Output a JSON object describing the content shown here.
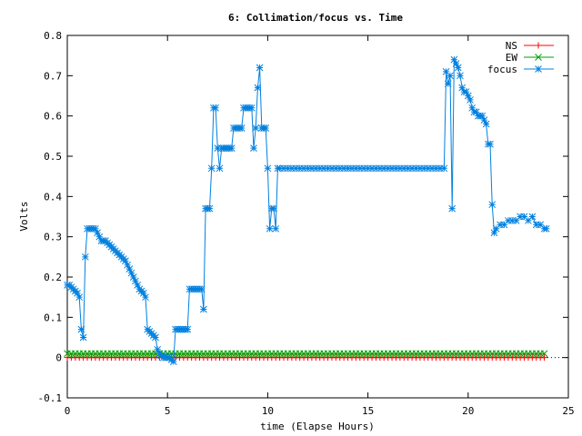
{
  "chart_data": {
    "type": "line",
    "title": "6: Collimation/focus vs. Time",
    "xlabel": "time (Elapse Hours)",
    "ylabel": "Volts",
    "xlim": [
      0,
      25
    ],
    "ylim": [
      -0.1,
      0.8
    ],
    "x_ticks": [
      0,
      5,
      10,
      15,
      20,
      25
    ],
    "y_ticks": [
      -0.1,
      0,
      0.1,
      0.2,
      0.3,
      0.4,
      0.5,
      0.6,
      0.7,
      0.8
    ],
    "x_tick_labels": [
      "0",
      "5",
      "10",
      "15",
      "20",
      "25"
    ],
    "y_tick_labels": [
      "-0.1",
      "0",
      "0.1",
      "0.2",
      "0.3",
      "0.4",
      "0.5",
      "0.6",
      "0.7",
      "0.8"
    ],
    "grid": false,
    "legend_position": "top-right",
    "series": [
      {
        "name": "NS",
        "color": "#ff0000",
        "marker": "plus",
        "x": [
          0,
          0.2,
          0.4,
          0.6,
          0.8,
          1,
          1.2,
          1.4,
          1.6,
          1.8,
          2,
          2.2,
          2.4,
          2.6,
          2.8,
          3,
          3.2,
          3.4,
          3.6,
          3.8,
          4,
          4.2,
          4.4,
          4.6,
          4.8,
          5,
          5.2,
          5.4,
          5.6,
          5.8,
          6,
          6.2,
          6.4,
          6.6,
          6.8,
          7,
          7.2,
          7.4,
          7.6,
          7.8,
          8,
          8.2,
          8.4,
          8.6,
          8.8,
          9,
          9.2,
          9.4,
          9.6,
          9.8,
          10,
          10.2,
          10.4,
          10.6,
          10.8,
          11,
          11.2,
          11.4,
          11.6,
          11.8,
          12,
          12.2,
          12.4,
          12.6,
          12.8,
          13,
          13.2,
          13.4,
          13.6,
          13.8,
          14,
          14.2,
          14.4,
          14.6,
          14.8,
          15,
          15.2,
          15.4,
          15.6,
          15.8,
          16,
          16.2,
          16.4,
          16.6,
          16.8,
          17,
          17.2,
          17.4,
          17.6,
          17.8,
          18,
          18.2,
          18.4,
          18.6,
          18.8,
          19,
          19.2,
          19.4,
          19.6,
          19.8,
          20,
          20.2,
          20.4,
          20.6,
          20.8,
          21,
          21.2,
          21.4,
          21.6,
          21.8,
          22,
          22.2,
          22.4,
          22.6,
          22.8,
          23,
          23.2,
          23.4,
          23.6,
          23.8
        ],
        "y": [
          0,
          0,
          0,
          0,
          0,
          0,
          0,
          0,
          0,
          0,
          0,
          0,
          0,
          0,
          0,
          0,
          0,
          0,
          0,
          0,
          0,
          0,
          0,
          0,
          0,
          0,
          0,
          0,
          0,
          0,
          0,
          0,
          0,
          0,
          0,
          0,
          0,
          0,
          0,
          0,
          0,
          0,
          0,
          0,
          0,
          0,
          0,
          0,
          0,
          0,
          0,
          0,
          0,
          0,
          0,
          0,
          0,
          0,
          0,
          0,
          0,
          0,
          0,
          0,
          0,
          0,
          0,
          0,
          0,
          0,
          0,
          0,
          0,
          0,
          0,
          0,
          0,
          0,
          0,
          0,
          0,
          0,
          0,
          0,
          0,
          0,
          0,
          0,
          0,
          0,
          0,
          0,
          0,
          0,
          0,
          0,
          0,
          0,
          0,
          0,
          0,
          0,
          0,
          0,
          0,
          0,
          0,
          0,
          0,
          0,
          0,
          0,
          0,
          0,
          0,
          0,
          0,
          0,
          0,
          0
        ]
      },
      {
        "name": "EW",
        "color": "#00a000",
        "marker": "cross",
        "x": [
          0,
          0.2,
          0.4,
          0.6,
          0.8,
          1,
          1.2,
          1.4,
          1.6,
          1.8,
          2,
          2.2,
          2.4,
          2.6,
          2.8,
          3,
          3.2,
          3.4,
          3.6,
          3.8,
          4,
          4.2,
          4.4,
          4.6,
          4.8,
          5,
          5.2,
          5.4,
          5.6,
          5.8,
          6,
          6.2,
          6.4,
          6.6,
          6.8,
          7,
          7.2,
          7.4,
          7.6,
          7.8,
          8,
          8.2,
          8.4,
          8.6,
          8.8,
          9,
          9.2,
          9.4,
          9.6,
          9.8,
          10,
          10.2,
          10.4,
          10.6,
          10.8,
          11,
          11.2,
          11.4,
          11.6,
          11.8,
          12,
          12.2,
          12.4,
          12.6,
          12.8,
          13,
          13.2,
          13.4,
          13.6,
          13.8,
          14,
          14.2,
          14.4,
          14.6,
          14.8,
          15,
          15.2,
          15.4,
          15.6,
          15.8,
          16,
          16.2,
          16.4,
          16.6,
          16.8,
          17,
          17.2,
          17.4,
          17.6,
          17.8,
          18,
          18.2,
          18.4,
          18.6,
          18.8,
          19,
          19.2,
          19.4,
          19.6,
          19.8,
          20,
          20.2,
          20.4,
          20.6,
          20.8,
          21,
          21.2,
          21.4,
          21.6,
          21.8,
          22,
          22.2,
          22.4,
          22.6,
          22.8,
          23,
          23.2,
          23.4,
          23.6,
          23.8
        ],
        "y": [
          0.01,
          0.01,
          0.01,
          0.01,
          0.01,
          0.01,
          0.01,
          0.01,
          0.01,
          0.01,
          0.01,
          0.01,
          0.01,
          0.01,
          0.01,
          0.01,
          0.01,
          0.01,
          0.01,
          0.01,
          0.01,
          0.01,
          0.01,
          0.01,
          0.01,
          0.01,
          0.01,
          0.01,
          0.01,
          0.01,
          0.01,
          0.01,
          0.01,
          0.01,
          0.01,
          0.01,
          0.01,
          0.01,
          0.01,
          0.01,
          0.01,
          0.01,
          0.01,
          0.01,
          0.01,
          0.01,
          0.01,
          0.01,
          0.01,
          0.01,
          0.01,
          0.01,
          0.01,
          0.01,
          0.01,
          0.01,
          0.01,
          0.01,
          0.01,
          0.01,
          0.01,
          0.01,
          0.01,
          0.01,
          0.01,
          0.01,
          0.01,
          0.01,
          0.01,
          0.01,
          0.01,
          0.01,
          0.01,
          0.01,
          0.01,
          0.01,
          0.01,
          0.01,
          0.01,
          0.01,
          0.01,
          0.01,
          0.01,
          0.01,
          0.01,
          0.01,
          0.01,
          0.01,
          0.01,
          0.01,
          0.01,
          0.01,
          0.01,
          0.01,
          0.01,
          0.01,
          0.01,
          0.01,
          0.01,
          0.01,
          0.01,
          0.01,
          0.01,
          0.01,
          0.01,
          0.01,
          0.01,
          0.01,
          0.01,
          0.01,
          0.01,
          0.01,
          0.01,
          0.01,
          0.01,
          0.01,
          0.01,
          0.01,
          0.01,
          0.01
        ]
      },
      {
        "name": "focus",
        "color": "#0080e0",
        "marker": "star",
        "x": [
          0,
          0.1,
          0.2,
          0.3,
          0.4,
          0.5,
          0.6,
          0.7,
          0.8,
          0.9,
          1,
          1.1,
          1.2,
          1.3,
          1.4,
          1.5,
          1.6,
          1.7,
          1.8,
          1.9,
          2,
          2.1,
          2.2,
          2.3,
          2.4,
          2.5,
          2.6,
          2.7,
          2.8,
          2.9,
          3,
          3.1,
          3.2,
          3.3,
          3.4,
          3.5,
          3.6,
          3.7,
          3.8,
          3.9,
          4,
          4.1,
          4.2,
          4.3,
          4.4,
          4.5,
          4.6,
          4.7,
          4.8,
          4.9,
          5,
          5.1,
          5.2,
          5.3,
          5.4,
          5.5,
          5.6,
          5.7,
          5.8,
          5.9,
          6,
          6.1,
          6.2,
          6.3,
          6.4,
          6.5,
          6.6,
          6.7,
          6.8,
          6.9,
          7,
          7.1,
          7.2,
          7.3,
          7.4,
          7.5,
          7.6,
          7.7,
          7.8,
          7.9,
          8,
          8.1,
          8.2,
          8.3,
          8.4,
          8.5,
          8.6,
          8.7,
          8.8,
          8.9,
          9,
          9.1,
          9.2,
          9.3,
          9.4,
          9.5,
          9.6,
          9.7,
          9.8,
          9.9,
          10,
          10.1,
          10.2,
          10.3,
          10.4,
          10.5,
          10.6,
          10.8,
          11,
          11.2,
          11.4,
          11.6,
          11.8,
          12,
          12.2,
          12.4,
          12.6,
          12.8,
          13,
          13.2,
          13.4,
          13.6,
          13.8,
          14,
          14.2,
          14.4,
          14.6,
          14.8,
          15,
          15.2,
          15.4,
          15.6,
          15.8,
          16,
          16.2,
          16.4,
          16.6,
          16.8,
          17,
          17.2,
          17.4,
          17.6,
          17.8,
          18,
          18.2,
          18.4,
          18.6,
          18.8,
          18.9,
          19,
          19.1,
          19.2,
          19.3,
          19.4,
          19.5,
          19.6,
          19.7,
          19.8,
          19.9,
          20,
          20.1,
          20.2,
          20.3,
          20.4,
          20.5,
          20.6,
          20.7,
          20.8,
          20.9,
          21,
          21.1,
          21.2,
          21.3,
          21.4,
          21.6,
          21.8,
          22,
          22.2,
          22.4,
          22.6,
          22.8,
          23,
          23.2,
          23.4,
          23.6,
          23.8,
          23.9
        ],
        "y": [
          0.18,
          0.18,
          0.175,
          0.17,
          0.165,
          0.16,
          0.15,
          0.07,
          0.05,
          0.25,
          0.32,
          0.32,
          0.32,
          0.32,
          0.32,
          0.31,
          0.3,
          0.29,
          0.29,
          0.29,
          0.285,
          0.28,
          0.275,
          0.27,
          0.265,
          0.26,
          0.255,
          0.25,
          0.245,
          0.24,
          0.23,
          0.22,
          0.21,
          0.2,
          0.19,
          0.18,
          0.17,
          0.165,
          0.16,
          0.15,
          0.07,
          0.065,
          0.06,
          0.055,
          0.05,
          0.02,
          0.01,
          0.005,
          0,
          0,
          0,
          0,
          -0.005,
          -0.01,
          0.07,
          0.07,
          0.07,
          0.07,
          0.07,
          0.07,
          0.07,
          0.17,
          0.17,
          0.17,
          0.17,
          0.17,
          0.17,
          0.17,
          0.12,
          0.37,
          0.37,
          0.37,
          0.47,
          0.62,
          0.62,
          0.52,
          0.47,
          0.52,
          0.52,
          0.52,
          0.52,
          0.52,
          0.52,
          0.57,
          0.57,
          0.57,
          0.57,
          0.57,
          0.62,
          0.62,
          0.62,
          0.62,
          0.62,
          0.52,
          0.57,
          0.67,
          0.72,
          0.57,
          0.57,
          0.57,
          0.47,
          0.32,
          0.37,
          0.37,
          0.32,
          0.47,
          0.47,
          0.47,
          0.47,
          0.47,
          0.47,
          0.47,
          0.47,
          0.47,
          0.47,
          0.47,
          0.47,
          0.47,
          0.47,
          0.47,
          0.47,
          0.47,
          0.47,
          0.47,
          0.47,
          0.47,
          0.47,
          0.47,
          0.47,
          0.47,
          0.47,
          0.47,
          0.47,
          0.47,
          0.47,
          0.47,
          0.47,
          0.47,
          0.47,
          0.47,
          0.47,
          0.47,
          0.47,
          0.47,
          0.47,
          0.47,
          0.47,
          0.47,
          0.71,
          0.68,
          0.7,
          0.37,
          0.74,
          0.73,
          0.72,
          0.7,
          0.67,
          0.66,
          0.66,
          0.65,
          0.64,
          0.62,
          0.61,
          0.61,
          0.6,
          0.6,
          0.6,
          0.59,
          0.58,
          0.53,
          0.53,
          0.38,
          0.31,
          0.32,
          0.33,
          0.33,
          0.34,
          0.34,
          0.34,
          0.35,
          0.35,
          0.34,
          0.35,
          0.33,
          0.33,
          0.32,
          0.32
        ]
      }
    ]
  }
}
